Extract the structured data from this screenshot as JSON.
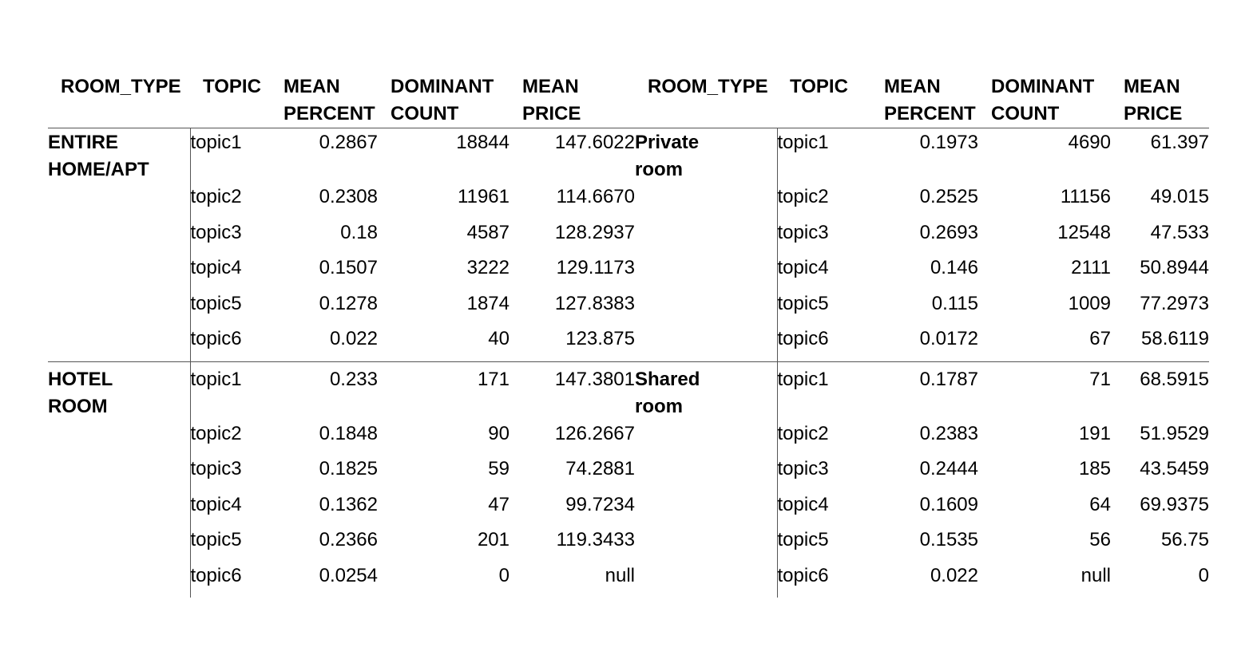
{
  "headers": {
    "room_type": "ROOM_TYPE",
    "topic": "TOPIC",
    "mean_percent": [
      "MEAN",
      "PERCENT"
    ],
    "dominant_count": [
      "DOMINANT",
      "COUNT"
    ],
    "mean_price": [
      "MEAN",
      "PRICE"
    ]
  },
  "groups": [
    {
      "left": {
        "room_type": [
          "ENTIRE",
          "HOME/APT"
        ],
        "rows": [
          {
            "topic": "topic1",
            "mean_percent": "0.2867",
            "dominant_count": "18844",
            "mean_price": "147.6022"
          },
          {
            "topic": "topic2",
            "mean_percent": "0.2308",
            "dominant_count": "11961",
            "mean_price": "114.6670"
          },
          {
            "topic": "topic3",
            "mean_percent": "0.18",
            "dominant_count": "4587",
            "mean_price": "128.2937"
          },
          {
            "topic": "topic4",
            "mean_percent": "0.1507",
            "dominant_count": "3222",
            "mean_price": "129.1173"
          },
          {
            "topic": "topic5",
            "mean_percent": "0.1278",
            "dominant_count": "1874",
            "mean_price": "127.8383"
          },
          {
            "topic": "topic6",
            "mean_percent": "0.022",
            "dominant_count": "40",
            "mean_price": "123.875"
          }
        ]
      },
      "right": {
        "room_type": [
          "Private",
          "room"
        ],
        "rows": [
          {
            "topic": "topic1",
            "mean_percent": "0.1973",
            "dominant_count": "4690",
            "mean_price": "61.397"
          },
          {
            "topic": "topic2",
            "mean_percent": "0.2525",
            "dominant_count": "11156",
            "mean_price": "49.015"
          },
          {
            "topic": "topic3",
            "mean_percent": "0.2693",
            "dominant_count": "12548",
            "mean_price": "47.533"
          },
          {
            "topic": "topic4",
            "mean_percent": "0.146",
            "dominant_count": "2111",
            "mean_price": "50.8944"
          },
          {
            "topic": "topic5",
            "mean_percent": "0.115",
            "dominant_count": "1009",
            "mean_price": "77.2973"
          },
          {
            "topic": "topic6",
            "mean_percent": "0.0172",
            "dominant_count": "67",
            "mean_price": "58.6119"
          }
        ]
      }
    },
    {
      "left": {
        "room_type": [
          "HOTEL",
          "ROOM"
        ],
        "rows": [
          {
            "topic": "topic1",
            "mean_percent": "0.233",
            "dominant_count": "171",
            "mean_price": "147.3801"
          },
          {
            "topic": "topic2",
            "mean_percent": "0.1848",
            "dominant_count": "90",
            "mean_price": "126.2667"
          },
          {
            "topic": "topic3",
            "mean_percent": "0.1825",
            "dominant_count": "59",
            "mean_price": "74.2881"
          },
          {
            "topic": "topic4",
            "mean_percent": "0.1362",
            "dominant_count": "47",
            "mean_price": "99.7234"
          },
          {
            "topic": "topic5",
            "mean_percent": "0.2366",
            "dominant_count": "201",
            "mean_price": "119.3433"
          },
          {
            "topic": "topic6",
            "mean_percent": "0.0254",
            "dominant_count": "0",
            "mean_price": "null"
          }
        ]
      },
      "right": {
        "room_type": [
          "Shared",
          "room"
        ],
        "rows": [
          {
            "topic": "topic1",
            "mean_percent": "0.1787",
            "dominant_count": "71",
            "mean_price": "68.5915"
          },
          {
            "topic": "topic2",
            "mean_percent": "0.2383",
            "dominant_count": "191",
            "mean_price": "51.9529"
          },
          {
            "topic": "topic3",
            "mean_percent": "0.2444",
            "dominant_count": "185",
            "mean_price": "43.5459"
          },
          {
            "topic": "topic4",
            "mean_percent": "0.1609",
            "dominant_count": "64",
            "mean_price": "69.9375"
          },
          {
            "topic": "topic5",
            "mean_percent": "0.1535",
            "dominant_count": "56",
            "mean_price": "56.75"
          },
          {
            "topic": "topic6",
            "mean_percent": "0.022",
            "dominant_count": "null",
            "mean_price": "0"
          }
        ]
      }
    }
  ]
}
